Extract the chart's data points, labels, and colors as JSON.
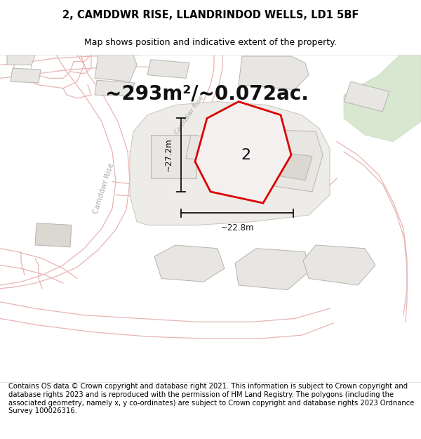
{
  "title": "2, CAMDDWR RISE, LLANDRINDOD WELLS, LD1 5BF",
  "subtitle": "Map shows position and indicative extent of the property.",
  "area_text": "~293m²/~0.072ac.",
  "dim_width": "~22.8m",
  "dim_height": "~27.2m",
  "label_number": "2",
  "footer": "Contains OS data © Crown copyright and database right 2021. This information is subject to Crown copyright and database rights 2023 and is reproduced with the permission of HM Land Registry. The polygons (including the associated geometry, namely x, y co-ordinates) are subject to Crown copyright and database rights 2023 Ordnance Survey 100026316.",
  "map_bg": "#f8f7f5",
  "road_line_color": "#e8b4b4",
  "road_line_color2": "#d4a0a0",
  "plot_fill": "#e8e6e2",
  "plot_edge": "#b8b4ae",
  "plot_edge2": "#c8c4be",
  "highlight_fill": "#f5f0f0",
  "highlight_edge": "#dd0000",
  "green_fill": "#d8e8d0",
  "green_edge": "#c8d8c0",
  "dim_color": "#111111",
  "road_label_color": "#aaaaaa",
  "title_fontsize": 10.5,
  "subtitle_fontsize": 9,
  "area_fontsize": 20,
  "label_fontsize": 16,
  "footer_fontsize": 7.2,
  "road_lw": 0.9,
  "plot_lw": 0.7
}
